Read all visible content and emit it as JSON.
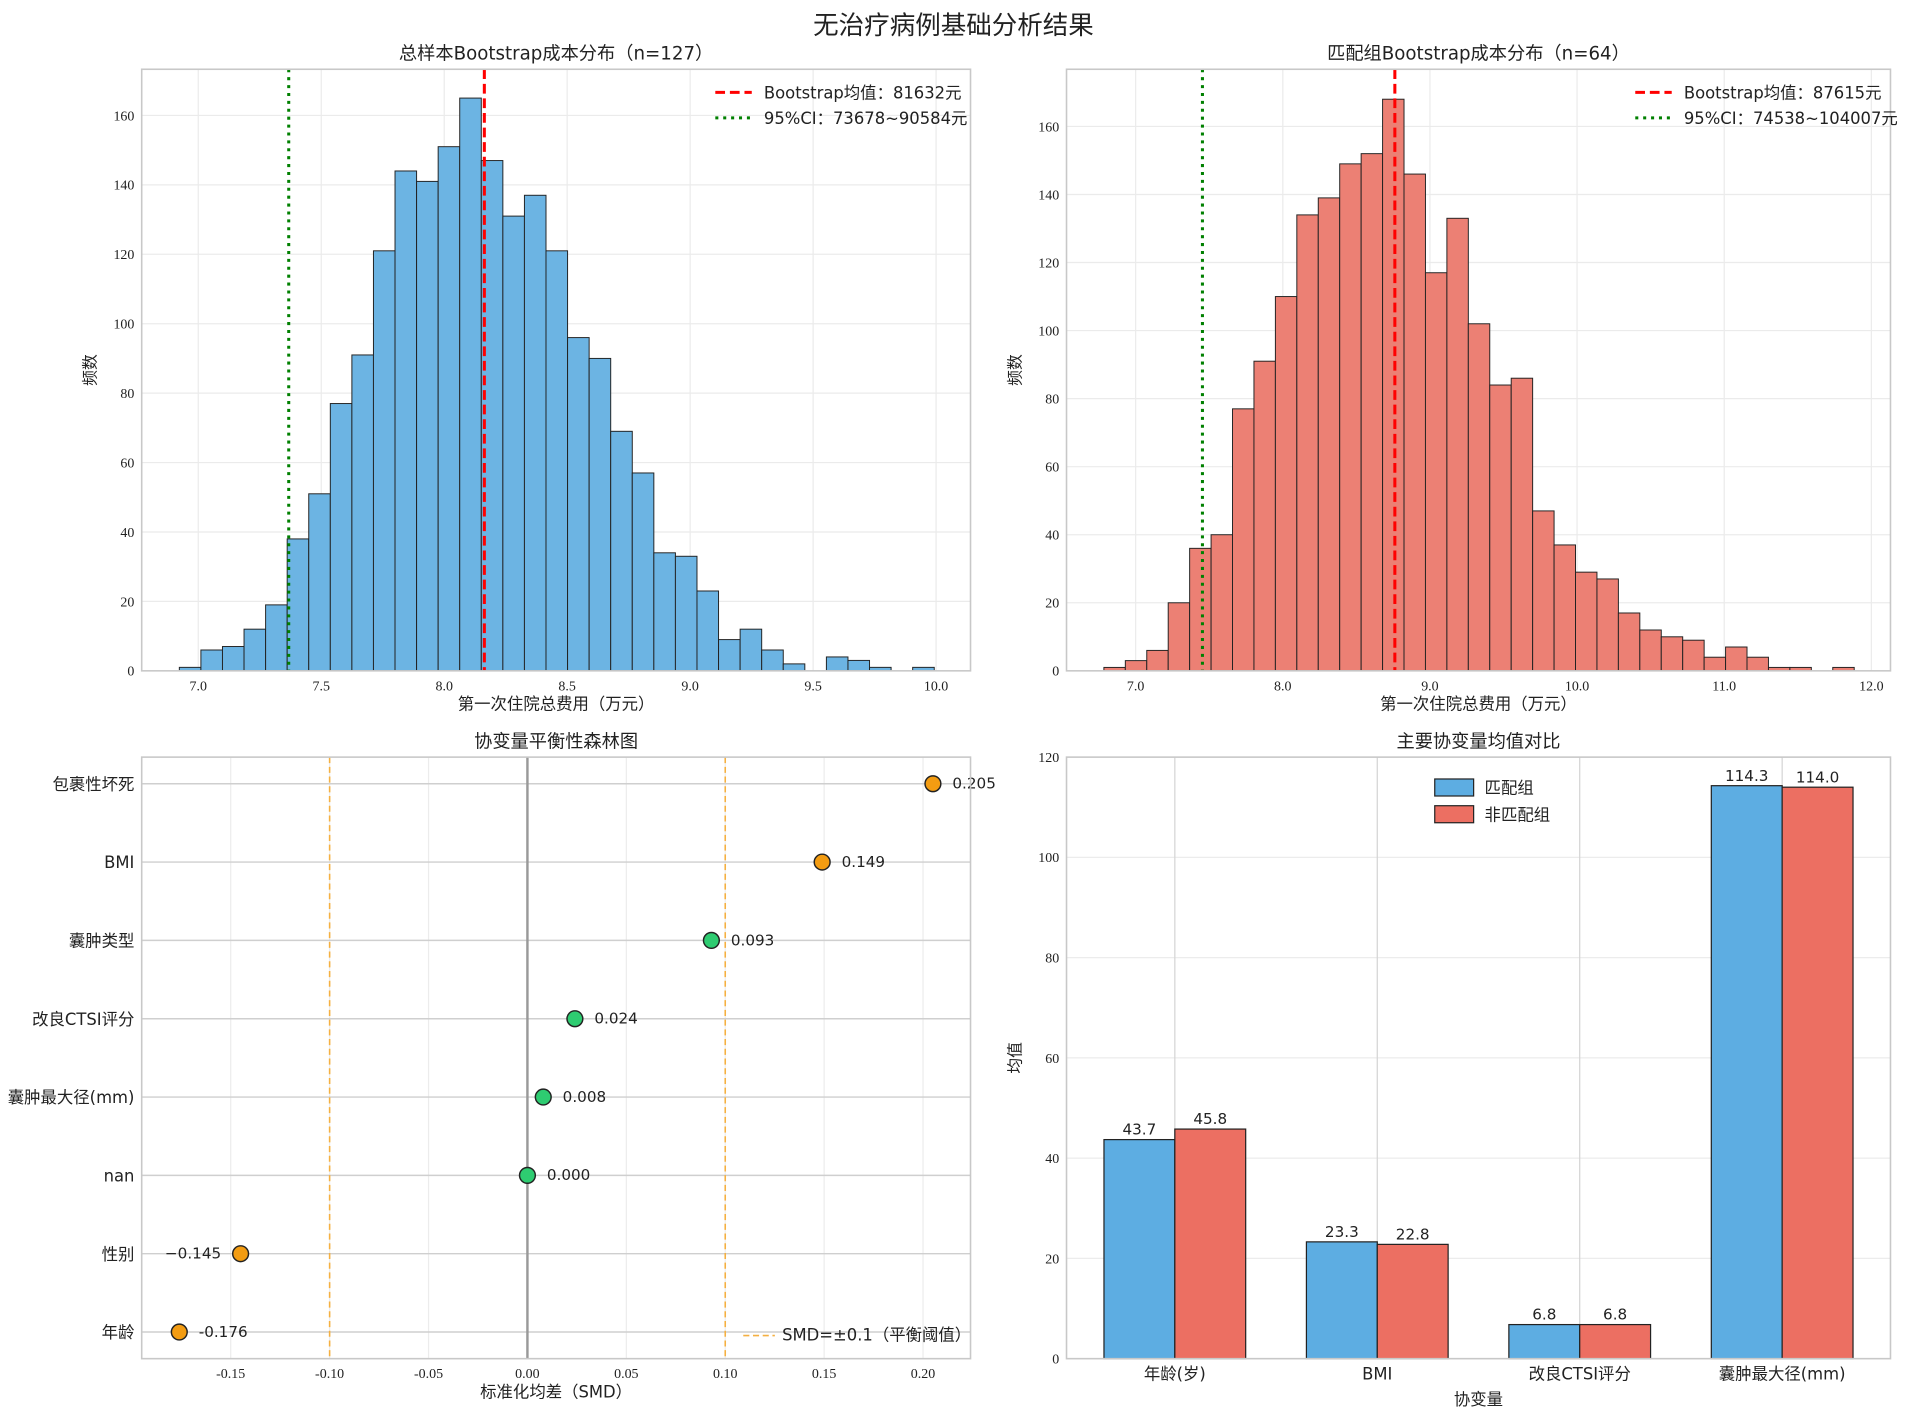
{
  "suptitle": "无治疗病例基础分析结果",
  "chart_data": [
    {
      "type": "bar",
      "subtype": "histogram",
      "title": "总样本Bootstrap成本分布（n=127）",
      "xlabel": "第一次住院总费用（万元）",
      "ylabel": "频数",
      "xlim": [
        6.77,
        10.14
      ],
      "ylim": [
        0,
        173.3
      ],
      "xticks": [
        7.0,
        7.5,
        8.0,
        8.5,
        9.0,
        9.5,
        10.0
      ],
      "xtick_labels": [
        "7.0",
        "7.5",
        "8.0",
        "8.5",
        "9.0",
        "9.5",
        "10.0"
      ],
      "yticks": [
        0,
        20,
        40,
        60,
        80,
        100,
        120,
        140,
        160
      ],
      "ytick_labels": [
        "0",
        "20",
        "40",
        "60",
        "80",
        "100",
        "120",
        "140",
        "160"
      ],
      "bin_start": 6.923,
      "bin_width": 0.0877,
      "counts": [
        1,
        6,
        7,
        12,
        19,
        38,
        51,
        77,
        91,
        121,
        144,
        141,
        151,
        165,
        147,
        131,
        137,
        121,
        96,
        90,
        69,
        57,
        34,
        33,
        23,
        9,
        12,
        6,
        2,
        0,
        4,
        3,
        1,
        0,
        1
      ],
      "mean_line": 8.1632,
      "ci_line": 7.3678,
      "legend": [
        "Bootstrap均值：81632元",
        "95%CI：73678~90584元"
      ],
      "legend_position": "top-right",
      "grid": true,
      "color": "#6CB4E3",
      "mean_color": "#FF0000",
      "ci_color": "#008000"
    },
    {
      "type": "bar",
      "subtype": "histogram",
      "title": "匹配组Bootstrap成本分布（n=64）",
      "xlabel": "第一次住院总费用（万元）",
      "ylabel": "频数",
      "xlim": [
        6.53,
        12.13
      ],
      "ylim": [
        0,
        176.8
      ],
      "xticks": [
        7,
        8,
        9,
        10,
        11,
        12
      ],
      "xtick_labels": [
        "7.0",
        "8.0",
        "9.0",
        "10.0",
        "11.0",
        "12.0"
      ],
      "yticks": [
        0,
        20,
        40,
        60,
        80,
        100,
        120,
        140,
        160
      ],
      "ytick_labels": [
        "0",
        "20",
        "40",
        "60",
        "80",
        "100",
        "120",
        "140",
        "160"
      ],
      "bin_start": 6.784,
      "bin_width": 0.1457,
      "counts": [
        1,
        3,
        6,
        20,
        36,
        40,
        77,
        91,
        110,
        134,
        139,
        149,
        152,
        168,
        146,
        117,
        133,
        102,
        84,
        86,
        47,
        37,
        29,
        27,
        17,
        12,
        10,
        9,
        4,
        7,
        4,
        1,
        1,
        0,
        1
      ],
      "mean_line": 8.7615,
      "ci_line": 7.4538,
      "legend": [
        "Bootstrap均值：87615元",
        "95%CI：74538~104007元"
      ],
      "legend_position": "top-right",
      "grid": true,
      "color": "#EC8074",
      "mean_color": "#FF0000",
      "ci_color": "#008000"
    },
    {
      "type": "scatter",
      "subtype": "forest",
      "title": "协变量平衡性森林图",
      "xlabel": "标准化均差（SMD）",
      "xlim": [
        -0.195,
        0.224
      ],
      "xticks": [
        -0.15,
        -0.1,
        -0.05,
        0.0,
        0.05,
        0.1,
        0.15,
        0.2
      ],
      "xtick_labels": [
        "-0.15",
        "-0.10",
        "-0.05",
        "0.00",
        "0.05",
        "0.10",
        "0.15",
        "0.20"
      ],
      "categories": [
        "年龄",
        "性别",
        "nan",
        "囊肿最大径(mm)",
        "改良CTSI评分",
        "囊肿类型",
        "BMI",
        "包裹性坏死"
      ],
      "values": [
        -0.176,
        -0.145,
        0.0,
        0.008,
        0.024,
        0.093,
        0.149,
        0.205
      ],
      "value_labels": [
        "-0.176",
        "−0.145",
        "0.000",
        "0.008",
        "0.024",
        "0.093",
        "0.149",
        "0.205"
      ],
      "threshold": 0.1,
      "legend": [
        "SMD=±0.1（平衡阈值）"
      ],
      "legend_position": "bottom-right",
      "balanced_color": "#2ECC71",
      "imbalanced_color": "#F39C12",
      "threshold_color": "#F5B041"
    },
    {
      "type": "bar",
      "subtype": "grouped",
      "title": "主要协变量均值对比",
      "xlabel": "协变量",
      "ylabel": "均值",
      "ylim": [
        0,
        120
      ],
      "yticks": [
        0,
        20,
        40,
        60,
        80,
        100,
        120
      ],
      "ytick_labels": [
        "0",
        "20",
        "40",
        "60",
        "80",
        "100",
        "120"
      ],
      "categories": [
        "年龄(岁)",
        "BMI",
        "改良CTSI评分",
        "囊肿最大径(mm)"
      ],
      "series": [
        {
          "name": "匹配组",
          "values": [
            43.7,
            23.3,
            6.8,
            114.3
          ],
          "labels": [
            "43.7",
            "23.3",
            "6.8",
            "114.3"
          ],
          "color": "#5DADE2"
        },
        {
          "name": "非匹配组",
          "values": [
            45.8,
            22.8,
            6.8,
            114.0
          ],
          "labels": [
            "45.8",
            "22.8",
            "6.8",
            "114.0"
          ],
          "color": "#EC6F62"
        }
      ],
      "legend_position": "top-right",
      "grid": true
    }
  ]
}
